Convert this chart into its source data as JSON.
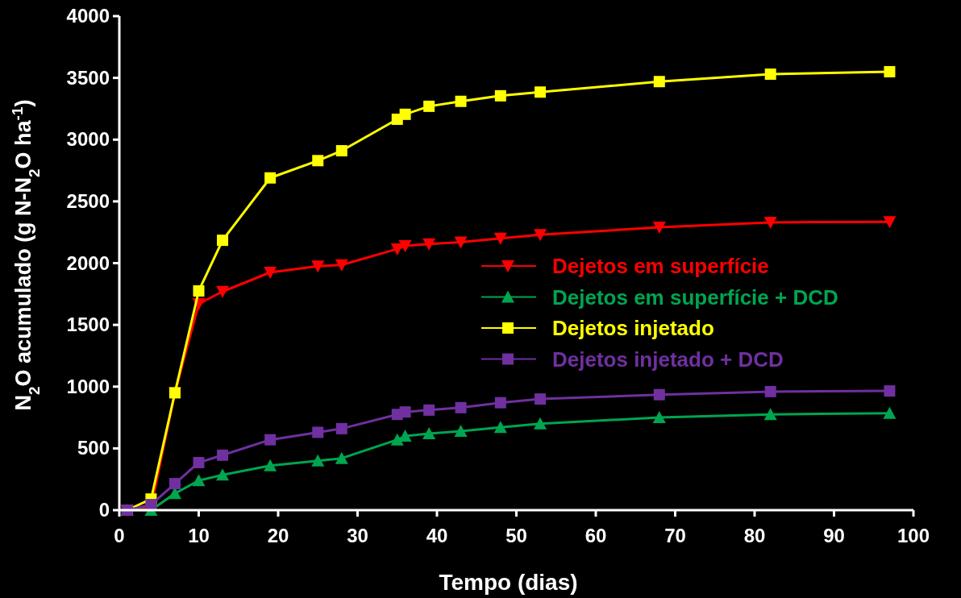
{
  "chart_data": {
    "type": "line",
    "xlabel": "Tempo (dias)",
    "ylabel": "N$_{2}$O acumulado (g N-N$_{2}$O ha$^{-1}$)",
    "x": [
      1,
      4,
      7,
      10,
      13,
      19,
      25,
      28,
      35,
      36,
      39,
      43,
      48,
      53,
      68,
      82,
      97
    ],
    "xlim": [
      0,
      100
    ],
    "xticks": [
      0,
      10,
      20,
      30,
      40,
      50,
      60,
      70,
      80,
      90,
      100
    ],
    "ylim": [
      0,
      4000
    ],
    "yticks": [
      0,
      500,
      1000,
      1500,
      2000,
      2500,
      3000,
      3500,
      4000
    ],
    "grid": false,
    "legend": "right",
    "line_style": "solid",
    "series": [
      {
        "name": "Dejetos em superfície",
        "color": "#ff0000",
        "marker": "triangle-down",
        "values": [
          0,
          25,
          950,
          1670,
          1770,
          1925,
          1975,
          1985,
          2115,
          2140,
          2155,
          2170,
          2200,
          2230,
          2290,
          2330,
          2335
        ]
      },
      {
        "name": "Dejetos em superfície + DCD",
        "color": "#00a550",
        "marker": "triangle",
        "values": [
          0,
          0,
          135,
          240,
          285,
          360,
          400,
          420,
          570,
          600,
          620,
          640,
          670,
          700,
          750,
          775,
          785
        ]
      },
      {
        "name": "Dejetos injetado",
        "color": "#ffff00",
        "marker": "square",
        "values": [
          0,
          90,
          950,
          1775,
          2185,
          2690,
          2830,
          2910,
          3165,
          3205,
          3270,
          3310,
          3355,
          3385,
          3470,
          3530,
          3550
        ]
      },
      {
        "name": "Dejetos injetado + DCD",
        "color": "#7030a0",
        "marker": "square",
        "values": [
          0,
          45,
          215,
          385,
          445,
          570,
          630,
          660,
          775,
          795,
          810,
          830,
          870,
          900,
          935,
          960,
          965
        ]
      }
    ]
  }
}
